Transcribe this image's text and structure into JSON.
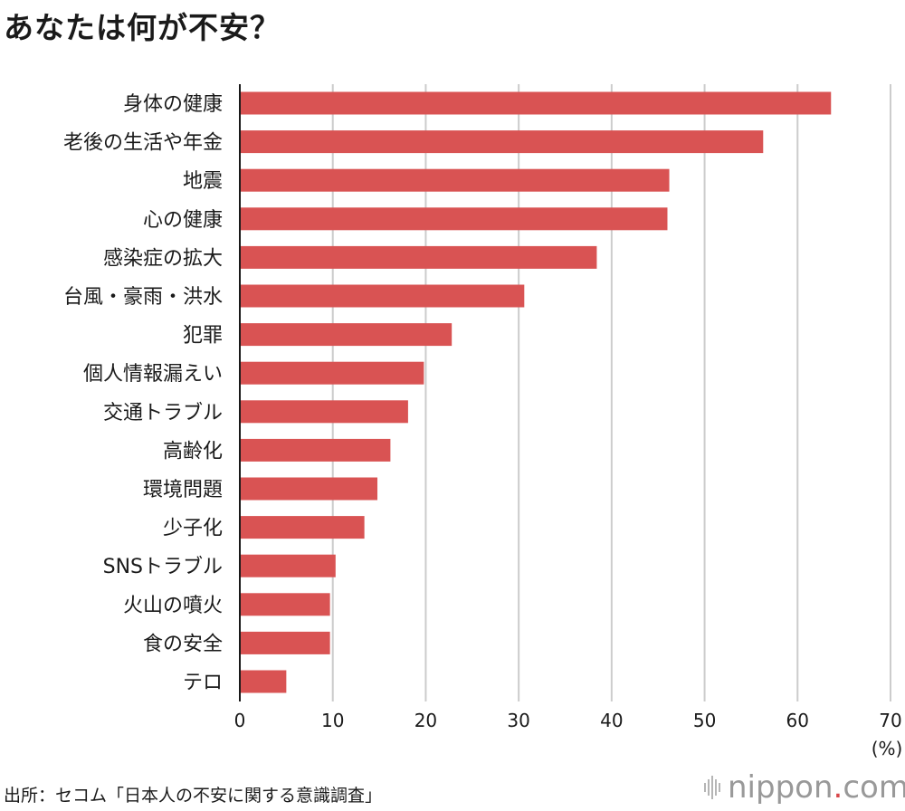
{
  "chart_data": {
    "type": "bar",
    "orientation": "horizontal",
    "title": "あなたは何が不安？",
    "categories": [
      "身体の健康",
      "老後の生活や年金",
      "地震",
      "心の健康",
      "感染症の拡大",
      "台風・豪雨・洪水",
      "犯罪",
      "個人情報漏えい",
      "交通トラブル",
      "高齢化",
      "環境問題",
      "少子化",
      "SNSトラブル",
      "火山の噴火",
      "食の安全",
      "テロ"
    ],
    "values": [
      63.6,
      56.3,
      46.2,
      46.0,
      38.4,
      30.6,
      22.8,
      19.8,
      18.1,
      16.2,
      14.8,
      13.4,
      10.3,
      9.7,
      9.7,
      5.0
    ],
    "xlim": [
      0,
      70
    ],
    "xticks": [
      0,
      10,
      20,
      30,
      40,
      50,
      60,
      70
    ],
    "xlabel": "(%)",
    "ylabel": "",
    "grid": true,
    "bar_color": "#d95353",
    "grid_color": "#cccccc"
  },
  "footer": {
    "source": "出所：セコム「日本人の不安に関する意識調査」",
    "brand_name": "nippon",
    "brand_dot": ".",
    "brand_tld": "com"
  }
}
